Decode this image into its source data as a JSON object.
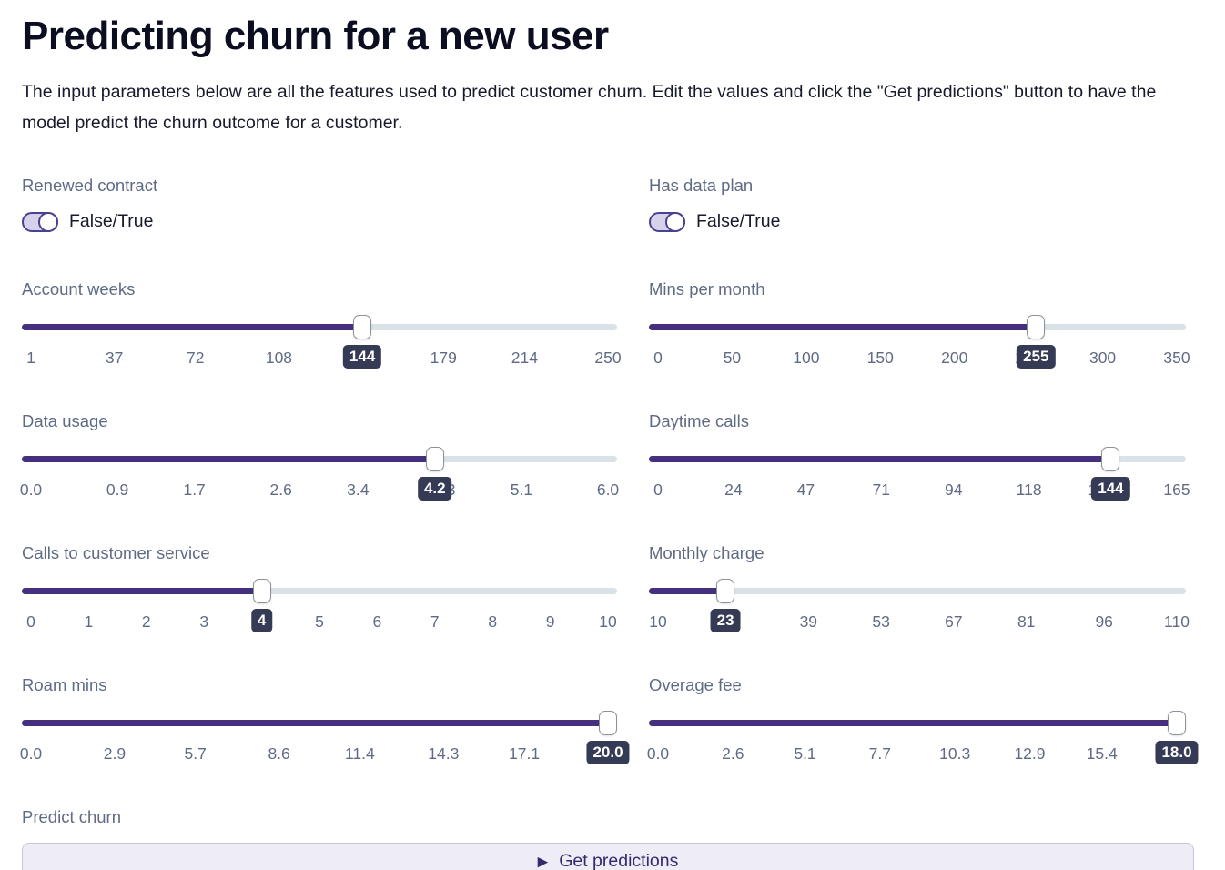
{
  "header": {
    "title": "Predicting churn for a new user",
    "description": "The input parameters below are all the features used to predict customer churn. Edit the values and click the \"Get predictions\" button to have the model predict the churn outcome for a customer."
  },
  "toggles": [
    {
      "id": "renewed-contract",
      "label": "Renewed contract",
      "value_label": "False/True",
      "state": "on"
    },
    {
      "id": "has-data-plan",
      "label": "Has data plan",
      "value_label": "False/True",
      "state": "on"
    }
  ],
  "sliders": [
    {
      "id": "account-weeks",
      "label": "Account weeks",
      "min": 1,
      "max": 250,
      "value": 144,
      "value_display": "144",
      "ticks": [
        "1",
        "37",
        "72",
        "108",
        "144",
        "179",
        "214",
        "250"
      ]
    },
    {
      "id": "mins-per-month",
      "label": "Mins per month",
      "min": 0,
      "max": 350,
      "value": 255,
      "value_display": "255",
      "ticks": [
        "0",
        "50",
        "100",
        "150",
        "200",
        "250",
        "300",
        "350"
      ]
    },
    {
      "id": "data-usage",
      "label": "Data usage",
      "min": 0,
      "max": 6,
      "value": 4.2,
      "value_display": "4.2",
      "ticks": [
        "0.0",
        "0.9",
        "1.7",
        "2.6",
        "3.4",
        "4.3",
        "5.1",
        "6.0"
      ]
    },
    {
      "id": "daytime-calls",
      "label": "Daytime calls",
      "min": 0,
      "max": 165,
      "value": 144,
      "value_display": "144",
      "ticks": [
        "0",
        "24",
        "47",
        "71",
        "94",
        "118",
        "141",
        "165"
      ]
    },
    {
      "id": "calls-to-customer-service",
      "label": "Calls to customer service",
      "min": 0,
      "max": 10,
      "value": 4,
      "value_display": "4",
      "ticks": [
        "0",
        "1",
        "2",
        "3",
        "4",
        "5",
        "6",
        "7",
        "8",
        "9",
        "10"
      ]
    },
    {
      "id": "monthly-charge",
      "label": "Monthly charge",
      "min": 10,
      "max": 110,
      "value": 23,
      "value_display": "23",
      "ticks": [
        "10",
        "24",
        "39",
        "53",
        "67",
        "81",
        "96",
        "110"
      ]
    },
    {
      "id": "roam-mins",
      "label": "Roam mins",
      "min": 0,
      "max": 20,
      "value": 20,
      "value_display": "20.0",
      "ticks": [
        "0.0",
        "2.9",
        "5.7",
        "8.6",
        "11.4",
        "14.3",
        "17.1",
        "20.0"
      ]
    },
    {
      "id": "overage-fee",
      "label": "Overage fee",
      "min": 0,
      "max": 18,
      "value": 18,
      "value_display": "18.0",
      "ticks": [
        "0.0",
        "2.6",
        "5.1",
        "7.7",
        "10.3",
        "12.9",
        "15.4",
        "18.0"
      ]
    }
  ],
  "predict": {
    "label": "Predict churn",
    "button_label": "Get predictions",
    "play_icon": "▶"
  },
  "theme": {
    "accent_purple": "#44307e",
    "track_empty": "#d9e2e6",
    "badge_bg": "#353b54",
    "label_color": "#5f6b85",
    "toggle_fill": "#d6d2ea",
    "toggle_border": "#4a4191",
    "button_bg": "#eeedf6",
    "button_border": "#c6c5dc",
    "button_text": "#37296f",
    "title_color": "#0b0e20",
    "text_color": "#171a2c"
  }
}
